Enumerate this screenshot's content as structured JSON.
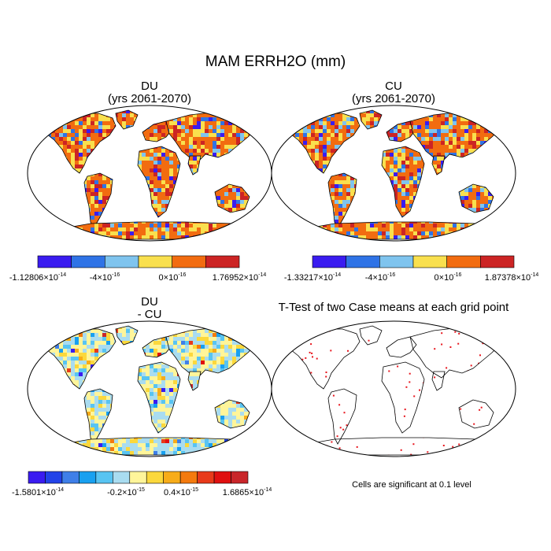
{
  "figure": {
    "title": "MAM ERRH2O (mm)",
    "colors": {
      "land_outline": "#000000",
      "significance_dot": "#e8141c"
    }
  },
  "panels": [
    {
      "id": "du",
      "title_line1": "DU",
      "title_line2": "(yrs 2061-2070)",
      "colorbar": {
        "colors": [
          "#3a1cf0",
          "#2f73e6",
          "#7fc4ee",
          "#f9e04e",
          "#f26c10",
          "#cc2424"
        ],
        "labels": [
          {
            "mant": "-1.12806",
            "exp": "-14"
          },
          {
            "mant": "-4",
            "exp": "-16"
          },
          {
            "mant": "0",
            "exp": "-16"
          },
          {
            "mant": "1.76952",
            "exp": "-14"
          }
        ]
      }
    },
    {
      "id": "cu",
      "title_line1": "CU",
      "title_line2": "(yrs 2061-2070)",
      "colorbar": {
        "colors": [
          "#3a1cf0",
          "#2f73e6",
          "#7fc4ee",
          "#f9e04e",
          "#f26c10",
          "#cc2424"
        ],
        "labels": [
          {
            "mant": "-1.33217",
            "exp": "-14"
          },
          {
            "mant": "-4",
            "exp": "-16"
          },
          {
            "mant": "0",
            "exp": "-16"
          },
          {
            "mant": "1.87378",
            "exp": "-14"
          }
        ]
      }
    },
    {
      "id": "diff",
      "title_line1": "DU",
      "title_line2": "- CU",
      "colorbar": {
        "colors": [
          "#3a1cf0",
          "#2243e8",
          "#3f7fe8",
          "#18a0f0",
          "#58c4f2",
          "#a9dcf0",
          "#fff59a",
          "#fbd83c",
          "#f7ac19",
          "#f47a0d",
          "#e83a1a",
          "#e01010",
          "#c9262a"
        ],
        "labels": [
          {
            "mant": "-1.5801",
            "exp": "-14"
          },
          {
            "mant": "-0.2",
            "exp": "-15"
          },
          {
            "mant": "0.4",
            "exp": "-15"
          },
          {
            "mant": "1.6865",
            "exp": "-14"
          }
        ]
      }
    },
    {
      "id": "ttest",
      "title_line1": "T-Test of two Case means at each grid point",
      "note": "Cells are significant at 0.1 level"
    }
  ]
}
